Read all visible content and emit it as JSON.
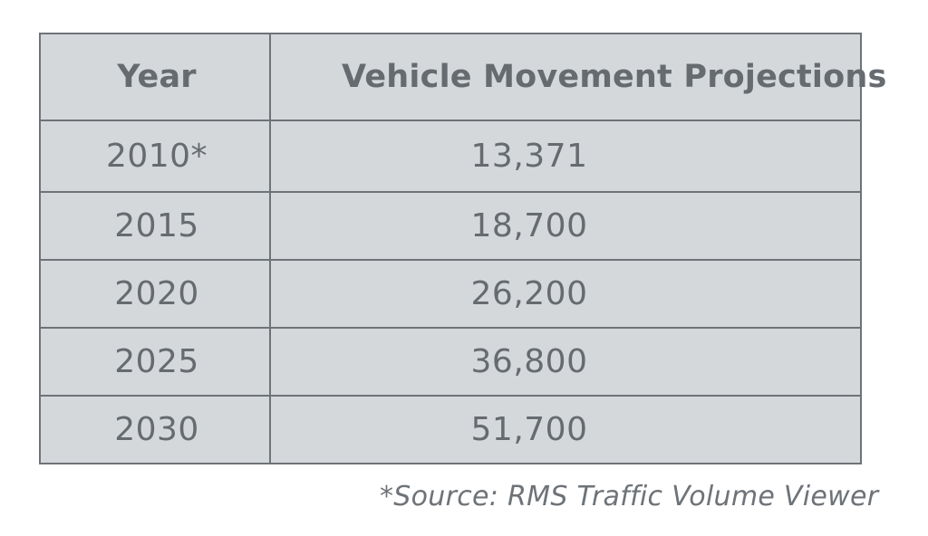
{
  "table": {
    "headers": [
      "Year",
      "Vehicle Movement Projections"
    ],
    "rows": [
      {
        "year": "2010*",
        "value": "13,371"
      },
      {
        "year": "2015",
        "value": "18,700"
      },
      {
        "year": "2020",
        "value": "26,200"
      },
      {
        "year": "2025",
        "value": "36,800"
      },
      {
        "year": "2030",
        "value": "51,700"
      }
    ]
  },
  "footnote": "*Source: RMS Traffic Volume Viewer",
  "colors": {
    "cell_background": "#d5d8db",
    "border": "#6e7378",
    "text": "#666b70"
  }
}
